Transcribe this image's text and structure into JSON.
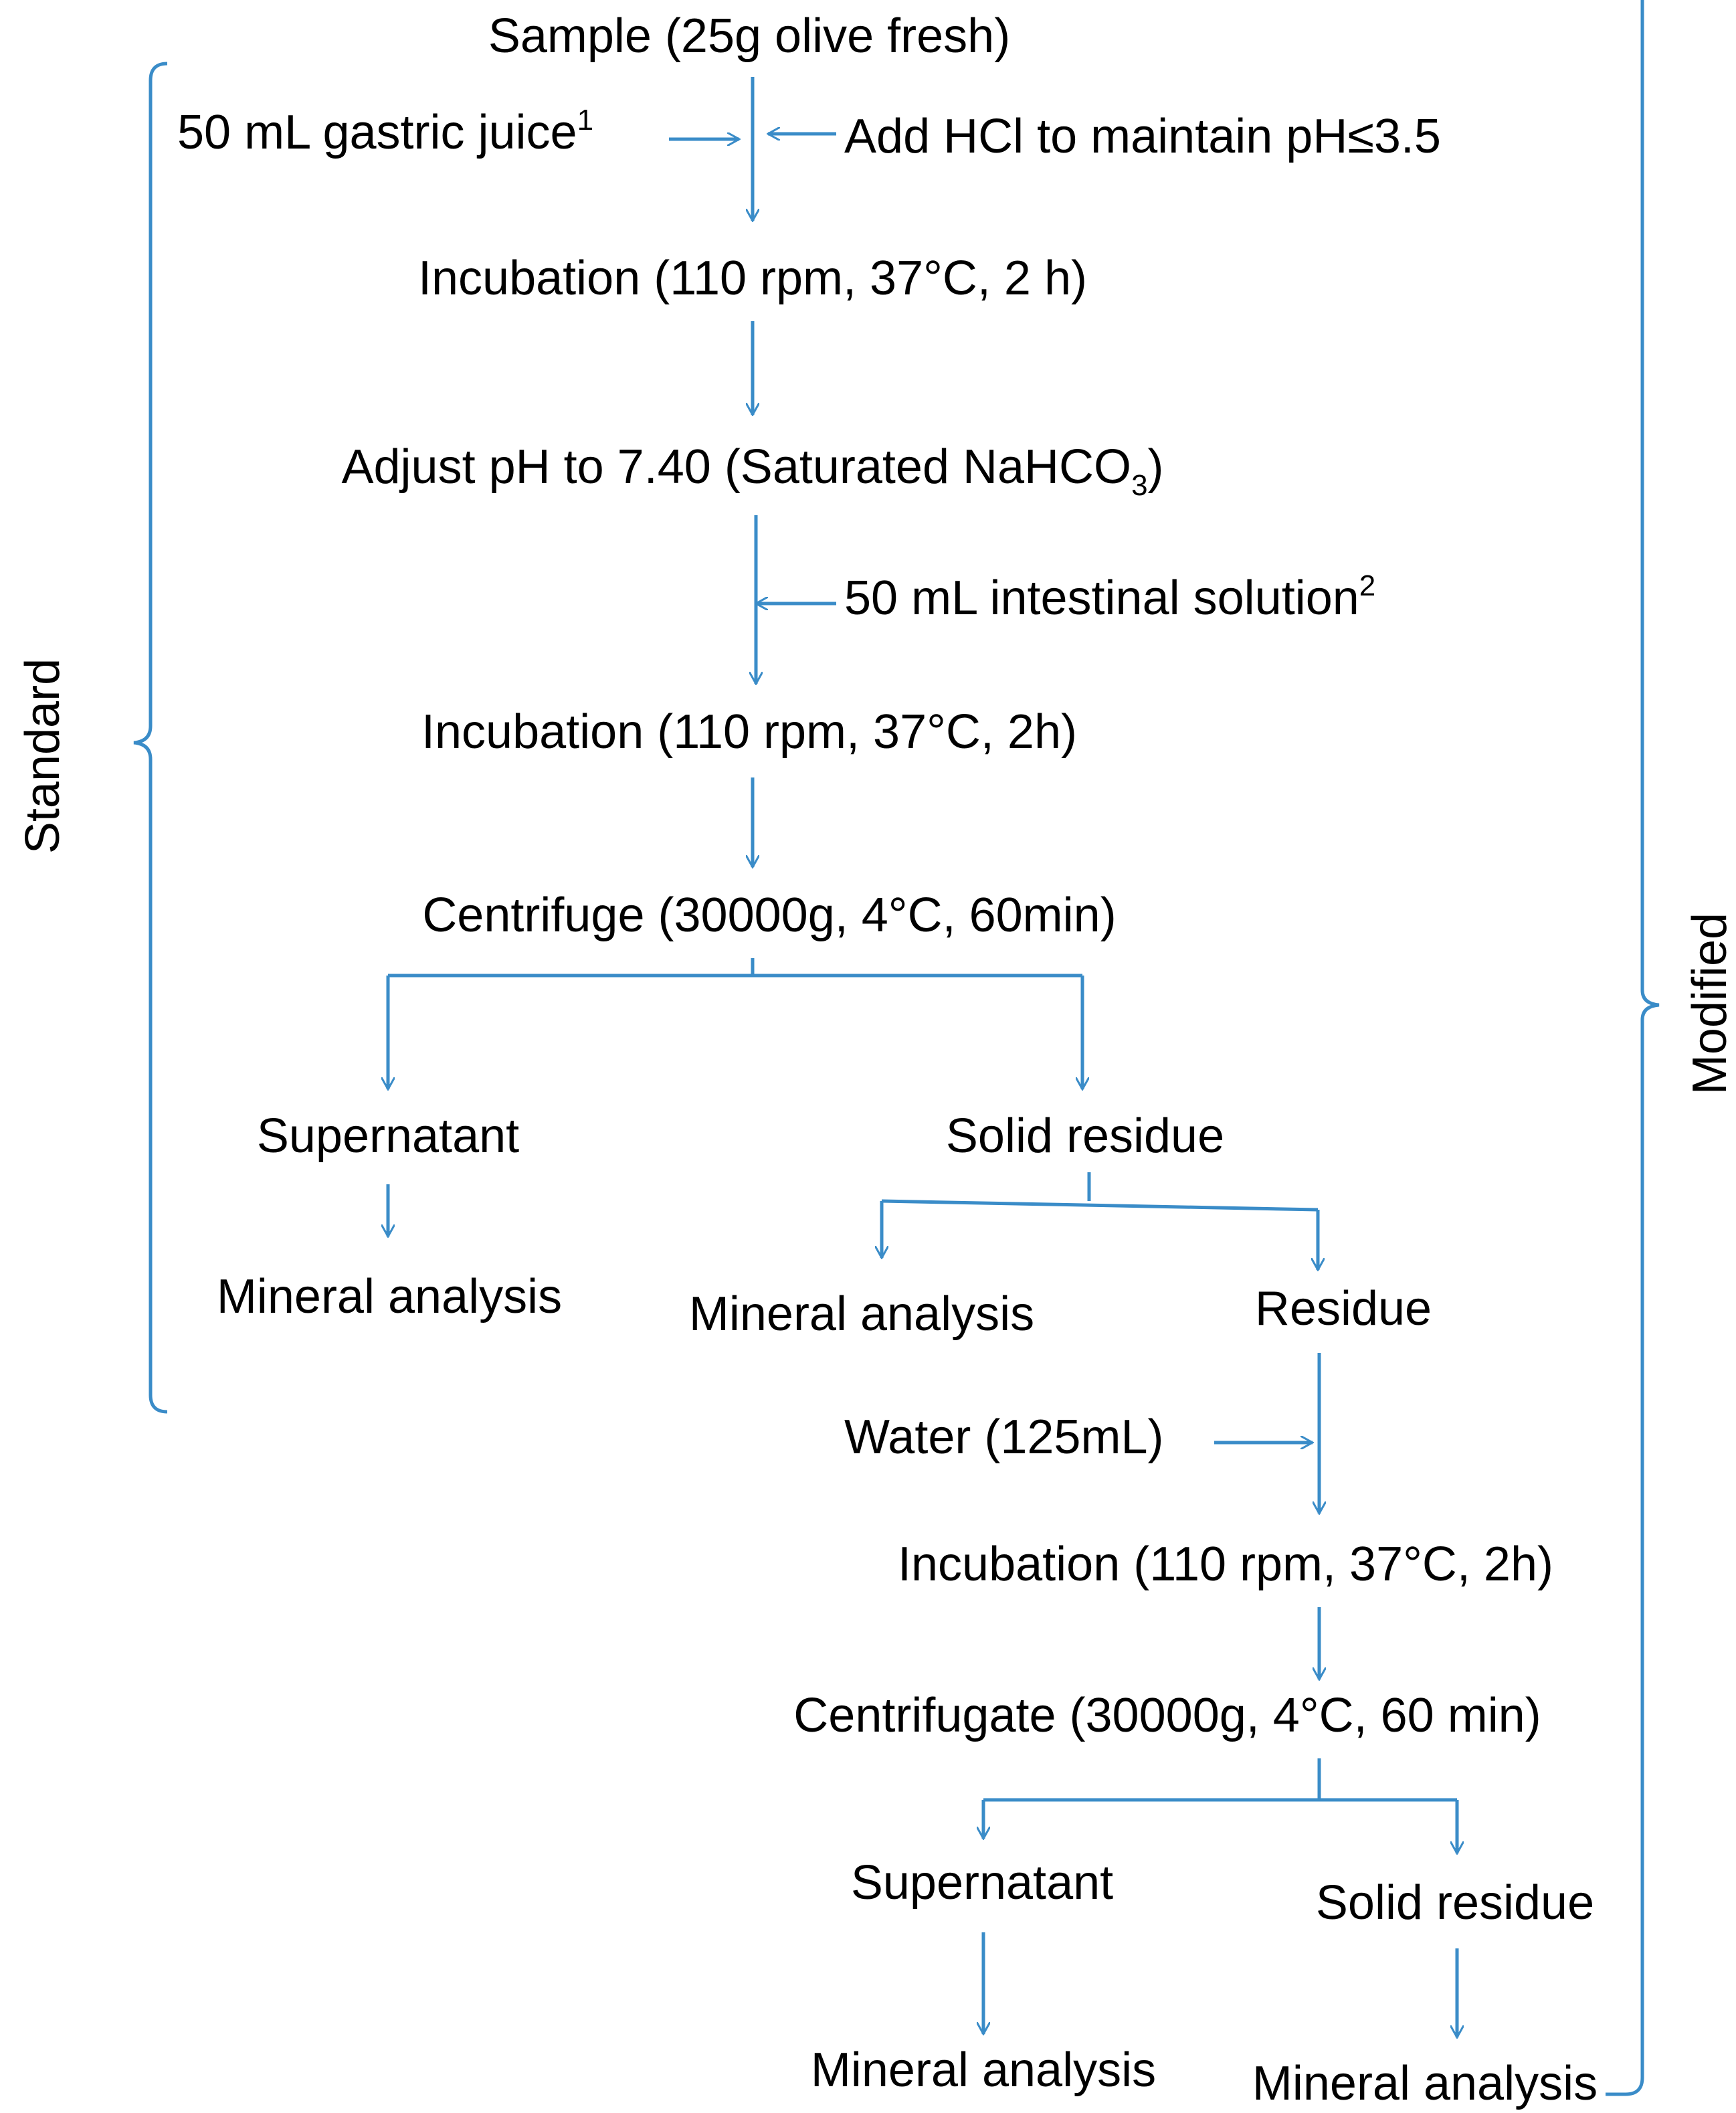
{
  "nodes": {
    "sample": "Sample (25g olive fresh)",
    "gastric_juice": "50 mL gastric juice",
    "gastric_juice_sup": "1",
    "add_hcl": "Add HCl to maintain pH≤3.5",
    "incubation_1": "Incubation (110 rpm, 37°C, 2 h)",
    "adjust_ph": "Adjust pH to 7.40 (Saturated NaHCO",
    "adjust_ph_sub": "3",
    "adjust_ph_end": ")",
    "intestinal_solution": "50 mL intestinal solution",
    "intestinal_solution_sup": "2",
    "incubation_2": "Incubation (110 rpm, 37°C, 2h)",
    "centrifuge": "Centrifuge (30000g, 4°C, 60min)",
    "supernatant_1": "Supernatant",
    "solid_residue_1": "Solid residue",
    "mineral_analysis_1": "Mineral analysis",
    "mineral_analysis_2": "Mineral analysis",
    "residue": "Residue",
    "water": "Water (125mL)",
    "incubation_3": "Incubation (110 rpm, 37°C, 2h)",
    "centrifugate": "Centrifugate (30000g, 4°C, 60 min)",
    "supernatant_2": "Supernatant",
    "solid_residue_2": "Solid residue",
    "mineral_analysis_3": "Mineral analysis",
    "mineral_analysis_4": "Mineral analysis"
  },
  "brackets": {
    "standard": "Standard",
    "modified": "Modified"
  },
  "colors": {
    "line": "#3a8cc8",
    "text": "#000000"
  }
}
